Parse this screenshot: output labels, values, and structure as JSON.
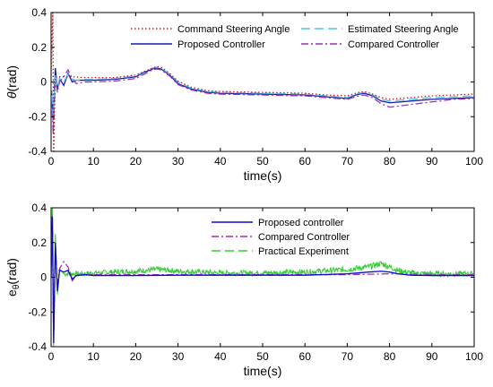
{
  "chart_data": [
    {
      "type": "line",
      "xlabel": "time(s)",
      "ylabel_symbol": "θ",
      "ylabel_unit": "(rad)",
      "xlim": [
        0,
        100
      ],
      "ylim": [
        -0.4,
        0.4
      ],
      "xticks": [
        0,
        10,
        20,
        30,
        40,
        50,
        60,
        70,
        80,
        90,
        100
      ],
      "yticks": [
        -0.4,
        -0.2,
        0,
        0.2,
        0.4
      ],
      "grid": false,
      "legend_position": "top-right",
      "legend": [
        {
          "label": "Command Steering Angle",
          "color": "#b22222",
          "dash": "1.5,2.5"
        },
        {
          "label": "Estimated Steering Angle",
          "color": "#4dc3e8",
          "dash": "10,5"
        },
        {
          "label": "Proposed Controller",
          "color": "#1a1aa6",
          "dash": ""
        },
        {
          "label": "Compared Controller",
          "color": "#9b2fc4",
          "dash": "8,3,2,3"
        }
      ],
      "series": [
        {
          "color": "#1a1aa6",
          "dash": "",
          "x": [
            0,
            0.5,
            1,
            1.5,
            2,
            3,
            4,
            5,
            6,
            8,
            10,
            15,
            20,
            22,
            24,
            25,
            26,
            28,
            30,
            33,
            37,
            40,
            50,
            60,
            65,
            70,
            72,
            74,
            76,
            78,
            80,
            85,
            90,
            95,
            100
          ],
          "y": [
            0,
            -0.22,
            0.08,
            -0.04,
            0.02,
            -0.02,
            0.05,
            0.0,
            0.01,
            0.01,
            0.01,
            0.015,
            0.03,
            0.055,
            0.075,
            0.08,
            0.075,
            0.04,
            -0.01,
            -0.04,
            -0.06,
            -0.065,
            -0.07,
            -0.075,
            -0.085,
            -0.095,
            -0.075,
            -0.065,
            -0.08,
            -0.11,
            -0.12,
            -0.11,
            -0.1,
            -0.095,
            -0.09
          ]
        },
        {
          "color": "#9b2fc4",
          "dash": "8,3,2,3",
          "x": [
            0,
            0.5,
            1,
            1.5,
            2,
            3,
            4,
            5,
            6,
            8,
            10,
            15,
            20,
            22,
            24,
            25,
            26,
            28,
            30,
            33,
            37,
            40,
            50,
            60,
            65,
            70,
            72,
            74,
            76,
            78,
            80,
            85,
            90,
            95,
            100
          ],
          "y": [
            0,
            -0.3,
            0.02,
            -0.06,
            0.0,
            0.03,
            0.07,
            0.02,
            -0.01,
            0.0,
            0.0,
            0.005,
            0.02,
            0.045,
            0.07,
            0.075,
            0.07,
            0.035,
            -0.015,
            -0.045,
            -0.065,
            -0.07,
            -0.075,
            -0.08,
            -0.09,
            -0.1,
            -0.085,
            -0.075,
            -0.09,
            -0.125,
            -0.145,
            -0.13,
            -0.115,
            -0.1,
            -0.095
          ]
        },
        {
          "color": "#4dc3e8",
          "dash": "10,5",
          "x": [
            0,
            0.5,
            1,
            1.5,
            2,
            3,
            4,
            5,
            6,
            8,
            10,
            15,
            20,
            22,
            24,
            25,
            26,
            28,
            30,
            33,
            37,
            40,
            50,
            60,
            65,
            70,
            72,
            74,
            76,
            78,
            80,
            85,
            90,
            95,
            100
          ],
          "y": [
            0,
            -0.2,
            0.05,
            -0.03,
            0.02,
            0.0,
            0.045,
            0.015,
            0.01,
            0.015,
            0.015,
            0.02,
            0.035,
            0.06,
            0.08,
            0.085,
            0.08,
            0.045,
            0.0,
            -0.035,
            -0.055,
            -0.06,
            -0.065,
            -0.07,
            -0.08,
            -0.09,
            -0.07,
            -0.06,
            -0.075,
            -0.1,
            -0.11,
            -0.1,
            -0.09,
            -0.085,
            -0.08
          ]
        },
        {
          "color": "#b22222",
          "dash": "1.5,2.5",
          "x": [
            0,
            0.4,
            0.6,
            1,
            2,
            3,
            5,
            8,
            10,
            15,
            20,
            22,
            24,
            25,
            26,
            28,
            30,
            33,
            37,
            40,
            50,
            60,
            65,
            70,
            72,
            74,
            76,
            78,
            80,
            85,
            90,
            95,
            100
          ],
          "y": [
            0,
            0.4,
            -0.4,
            0.03,
            0.03,
            0.03,
            0.03,
            0.025,
            0.025,
            0.025,
            0.04,
            0.06,
            0.08,
            0.09,
            0.085,
            0.05,
            0.005,
            -0.03,
            -0.05,
            -0.055,
            -0.06,
            -0.065,
            -0.075,
            -0.08,
            -0.065,
            -0.055,
            -0.07,
            -0.09,
            -0.1,
            -0.09,
            -0.08,
            -0.075,
            -0.07
          ]
        }
      ]
    },
    {
      "type": "line",
      "xlabel": "time(s)",
      "ylabel_symbol": "e",
      "ylabel_sub": "θ",
      "ylabel_unit": "(rad)",
      "xlim": [
        0,
        100
      ],
      "ylim": [
        -0.4,
        0.4
      ],
      "xticks": [
        0,
        10,
        20,
        30,
        40,
        50,
        60,
        70,
        80,
        90,
        100
      ],
      "yticks": [
        -0.4,
        -0.2,
        0,
        0.2,
        0.4
      ],
      "grid": false,
      "legend_position": "top-center",
      "legend": [
        {
          "label": "Proposed controller",
          "color": "#0a0ad0",
          "dash": ""
        },
        {
          "label": "Compared Controller",
          "color": "#9b2fc4",
          "dash": "8,3,2,3"
        },
        {
          "label": "Practical Experiment",
          "color": "#33cc33",
          "dash": "10,5"
        }
      ],
      "series": [
        {
          "color": "#33cc33",
          "dash": "",
          "noise": 0.03,
          "x": [
            0,
            0.3,
            0.6,
            1,
            1.5,
            2,
            3,
            5,
            8,
            10,
            15,
            20,
            25,
            28,
            30,
            35,
            40,
            50,
            60,
            70,
            75,
            78,
            80,
            82,
            85,
            90,
            95,
            100
          ],
          "y": [
            0,
            0.4,
            -0.4,
            0.25,
            -0.1,
            0.05,
            0.02,
            0.02,
            0.02,
            0.025,
            0.03,
            0.035,
            0.045,
            0.04,
            0.035,
            0.03,
            0.025,
            0.025,
            0.03,
            0.045,
            0.06,
            0.08,
            0.06,
            0.04,
            0.025,
            0.02,
            0.02,
            0.02
          ]
        },
        {
          "color": "#9b2fc4",
          "dash": "8,3,2,3",
          "x": [
            0,
            0.3,
            0.6,
            1,
            1.5,
            2,
            3,
            4,
            5,
            6,
            8,
            10,
            20,
            30,
            40,
            50,
            60,
            70,
            80,
            90,
            100
          ],
          "y": [
            0,
            0.3,
            -0.35,
            0.15,
            -0.05,
            0.05,
            0.09,
            0.06,
            -0.02,
            0.01,
            0.015,
            0.015,
            0.015,
            0.015,
            0.015,
            0.015,
            0.015,
            0.015,
            0.02,
            0.015,
            0.015
          ]
        },
        {
          "color": "#0a0ad0",
          "dash": "",
          "x": [
            0,
            0.3,
            0.6,
            1,
            1.5,
            2,
            3,
            4,
            5,
            6,
            8,
            10,
            20,
            30,
            40,
            50,
            60,
            70,
            75,
            78,
            80,
            82,
            85,
            90,
            100
          ],
          "y": [
            0,
            0.35,
            -0.38,
            0.2,
            -0.08,
            0.04,
            0.03,
            0.04,
            -0.01,
            0.01,
            0.015,
            0.01,
            0.01,
            0.012,
            0.012,
            0.012,
            0.012,
            0.02,
            0.03,
            0.035,
            0.03,
            0.02,
            0.012,
            0.01,
            0.01
          ]
        }
      ]
    }
  ]
}
